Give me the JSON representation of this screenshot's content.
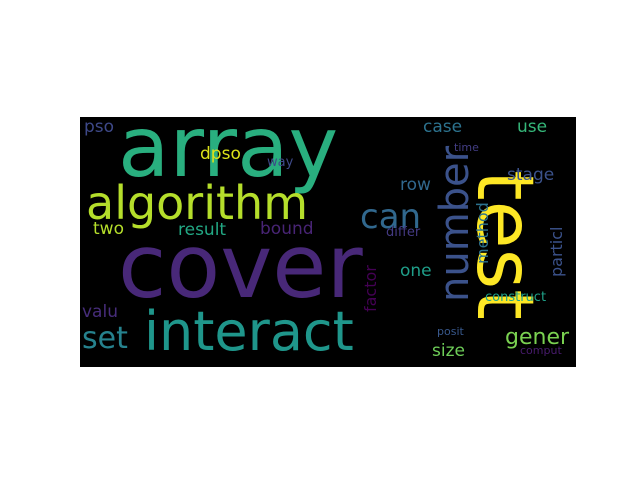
{
  "words": [
    {
      "text": "array",
      "color": "#29af7f",
      "vertical": false
    },
    {
      "text": "cover",
      "color": "#482878",
      "vertical": false
    },
    {
      "text": "test",
      "color": "#fde725",
      "vertical": true
    },
    {
      "text": "interact",
      "color": "#1f968b",
      "vertical": false
    },
    {
      "text": "algorithm",
      "color": "#b5de2b",
      "vertical": false
    },
    {
      "text": "number",
      "color": "#3b528b",
      "vertical": true
    },
    {
      "text": "can",
      "color": "#31688e",
      "vertical": false
    },
    {
      "text": "set",
      "color": "#26828e",
      "vertical": false
    },
    {
      "text": "gener",
      "color": "#7ad151",
      "vertical": false
    },
    {
      "text": "pso",
      "color": "#3e4989",
      "vertical": false
    },
    {
      "text": "dpso",
      "color": "#dce319",
      "vertical": false
    },
    {
      "text": "way",
      "color": "#3e4a89",
      "vertical": false
    },
    {
      "text": "case",
      "color": "#2c728e",
      "vertical": false
    },
    {
      "text": "use",
      "color": "#35b779",
      "vertical": false
    },
    {
      "text": "time",
      "color": "#433e85",
      "vertical": false
    },
    {
      "text": "row",
      "color": "#31688e",
      "vertical": false
    },
    {
      "text": "stage",
      "color": "#3b528b",
      "vertical": false
    },
    {
      "text": "two",
      "color": "#b5de2b",
      "vertical": false
    },
    {
      "text": "result",
      "color": "#22a884",
      "vertical": false
    },
    {
      "text": "bound",
      "color": "#482475",
      "vertical": false
    },
    {
      "text": "differ",
      "color": "#443a83",
      "vertical": false
    },
    {
      "text": "method",
      "color": "#2c728e",
      "vertical": true
    },
    {
      "text": "particl",
      "color": "#3b528b",
      "vertical": true
    },
    {
      "text": "factor",
      "color": "#440154",
      "vertical": true
    },
    {
      "text": "one",
      "color": "#1f9e89",
      "vertical": false
    },
    {
      "text": "valu",
      "color": "#472d7b",
      "vertical": false
    },
    {
      "text": "construct",
      "color": "#1fa188",
      "vertical": false
    },
    {
      "text": "size",
      "color": "#6ece58",
      "vertical": false
    },
    {
      "text": "posit",
      "color": "#38588c",
      "vertical": false
    },
    {
      "text": "comput",
      "color": "#481b6d",
      "vertical": false
    }
  ]
}
